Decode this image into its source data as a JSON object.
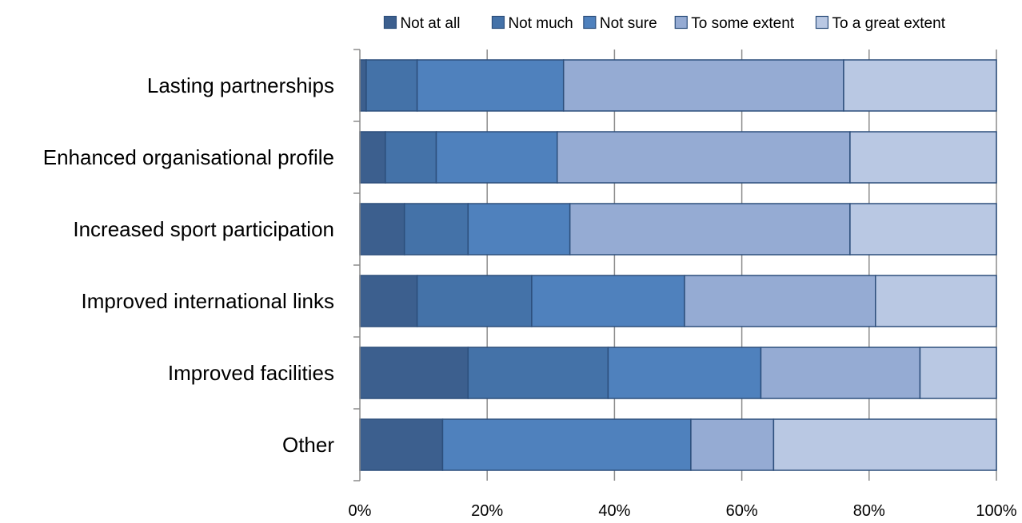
{
  "chart_data": {
    "type": "bar",
    "orientation": "horizontal",
    "stacked": "percent",
    "title": "",
    "xlabel": "",
    "ylabel": "",
    "categories": [
      "Lasting partnerships",
      "Enhanced organisational profile",
      "Increased sport participation",
      "Improved international links",
      "Improved facilities",
      "Other"
    ],
    "series": [
      {
        "name": "Not at all",
        "color": "#3c5f8e",
        "values": [
          1,
          4,
          7,
          9,
          17,
          13
        ]
      },
      {
        "name": "Not much",
        "color": "#4472a8",
        "values": [
          8,
          8,
          10,
          18,
          22,
          0
        ]
      },
      {
        "name": "Not sure",
        "color": "#4f81bd",
        "values": [
          23,
          19,
          16,
          24,
          24,
          39
        ]
      },
      {
        "name": "To some extent",
        "color": "#95abd3",
        "values": [
          44,
          46,
          44,
          30,
          25,
          13
        ]
      },
      {
        "name": "To a great extent",
        "color": "#b9c8e3",
        "values": [
          24,
          23,
          23,
          19,
          12,
          35
        ]
      }
    ],
    "xlim": [
      0,
      100
    ],
    "x_ticks": [
      "0%",
      "20%",
      "40%",
      "60%",
      "80%",
      "100%"
    ],
    "grid": "vertical",
    "legend_position": "top"
  }
}
